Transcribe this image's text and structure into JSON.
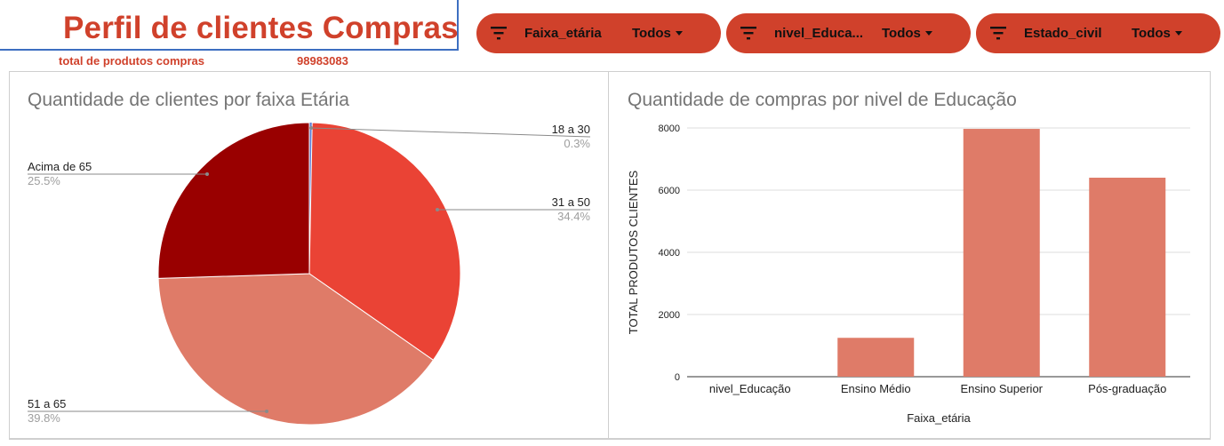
{
  "header": {
    "title": "Perfil de clientes Compras",
    "kpi_label": "total  de produtos compras",
    "kpi_value": "98983083"
  },
  "filters": [
    {
      "label": "Faixa_etária",
      "value": "Todos"
    },
    {
      "label": "nivel_Educa...",
      "value": "Todos"
    },
    {
      "label": "Estado_civil",
      "value": "Todos"
    }
  ],
  "colors": {
    "accent": "#d0412b",
    "pie_18_30": "#5c7bd4",
    "pie_31_50": "#ea4335",
    "pie_51_65": "#df7b68",
    "pie_acima_65": "#990000",
    "bar": "#df7b68"
  },
  "chart_data": [
    {
      "type": "pie",
      "title": "Quantidade de clientes por faixa Etária",
      "slices": [
        {
          "label": "18 a 30",
          "percent_label": "0.3%",
          "value": 0.3
        },
        {
          "label": "31 a 50",
          "percent_label": "34.4%",
          "value": 34.4
        },
        {
          "label": "51 a 65",
          "percent_label": "39.8%",
          "value": 39.8
        },
        {
          "label": "Acima de 65",
          "percent_label": "25.5%",
          "value": 25.5
        }
      ]
    },
    {
      "type": "bar",
      "title": "Quantidade de compras por nivel de Educação",
      "xlabel": "Faixa_etária",
      "ylabel": "TOTAL PRODUTOS CLIENTES",
      "categories": [
        "nivel_Educação",
        "Ensino Médio",
        "Ensino Superior",
        "Pós-graduação"
      ],
      "values": [
        0,
        1250,
        7970,
        6400
      ],
      "ylim": [
        0,
        8000
      ],
      "yticks": [
        "0",
        "2000",
        "4000",
        "6000",
        "8000"
      ],
      "grid": true
    }
  ]
}
